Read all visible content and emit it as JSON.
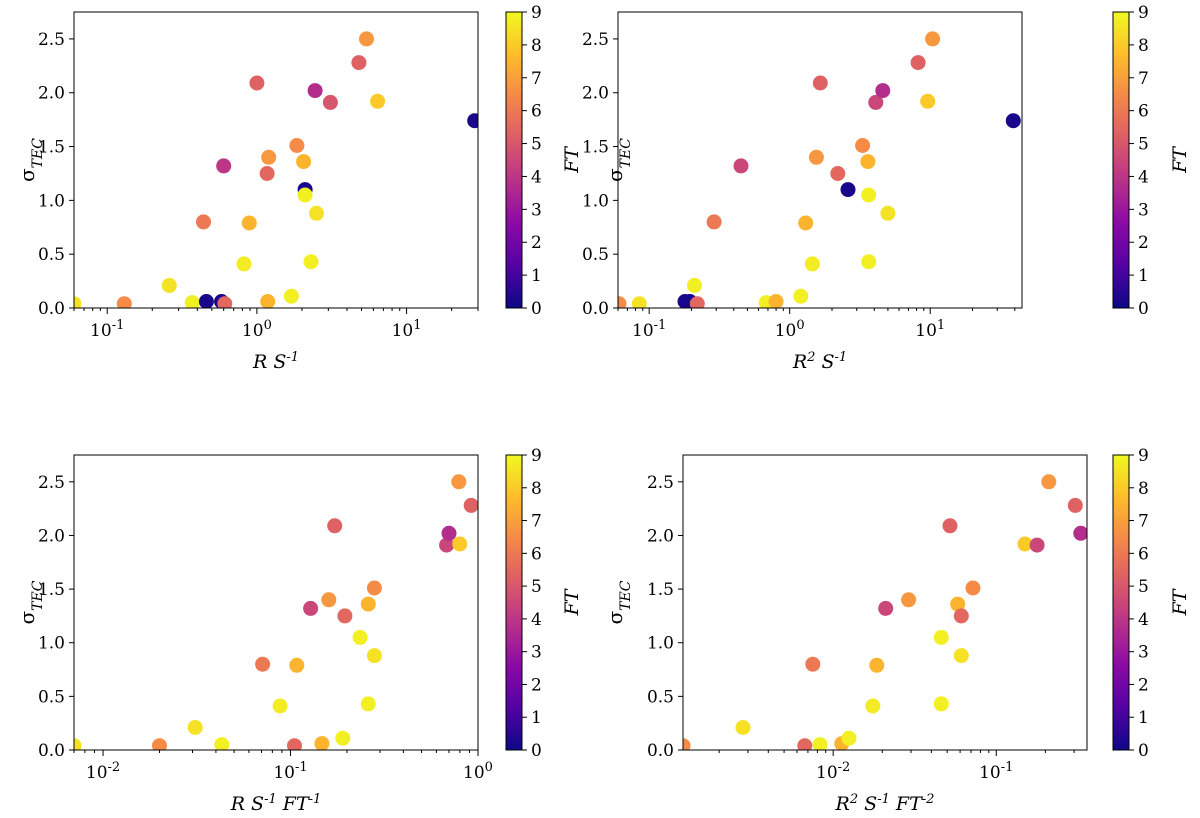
{
  "chart_data": [
    {
      "type": "scatter",
      "id": "p1",
      "x_scale": "log",
      "xlim": [
        0.06,
        30
      ],
      "ylim": [
        0.0,
        2.75
      ],
      "xlabel_tex": "R S^-1",
      "xlabel_parts": {
        "a": "R S",
        "b": "-1",
        "c": "",
        "d": ""
      },
      "ylabel_main": "σ",
      "ylabel_sub": "TEC",
      "x_ticks": [
        {
          "v": 0.1,
          "base": "10",
          "exp": "-1"
        },
        {
          "v": 1,
          "base": "10",
          "exp": "0"
        },
        {
          "v": 10,
          "base": "10",
          "exp": "1"
        }
      ],
      "y_ticks": [
        "0.0",
        "0.5",
        "1.0",
        "1.5",
        "2.0",
        "2.5"
      ],
      "colorbar": {
        "label": "FT",
        "min": 0,
        "max": 9,
        "ticks": [
          "0",
          "1",
          "2",
          "3",
          "4",
          "5",
          "6",
          "7",
          "8",
          "9"
        ]
      },
      "points": [
        {
          "x": 0.06,
          "y": 0.04,
          "ft": 8.5
        },
        {
          "x": 0.13,
          "y": 0.04,
          "ft": 6.5
        },
        {
          "x": 0.26,
          "y": 0.21,
          "ft": 8.5
        },
        {
          "x": 0.37,
          "y": 0.05,
          "ft": 8.8
        },
        {
          "x": 0.44,
          "y": 0.8,
          "ft": 6.0
        },
        {
          "x": 0.46,
          "y": 0.06,
          "ft": 0.2
        },
        {
          "x": 0.58,
          "y": 0.06,
          "ft": 0.2
        },
        {
          "x": 0.6,
          "y": 1.32,
          "ft": 4.0
        },
        {
          "x": 0.61,
          "y": 0.04,
          "ft": 5.5
        },
        {
          "x": 0.82,
          "y": 0.41,
          "ft": 8.7
        },
        {
          "x": 0.89,
          "y": 0.79,
          "ft": 7.5
        },
        {
          "x": 1.0,
          "y": 2.09,
          "ft": 5.3
        },
        {
          "x": 1.17,
          "y": 1.25,
          "ft": 5.5
        },
        {
          "x": 1.2,
          "y": 1.4,
          "ft": 6.8
        },
        {
          "x": 1.18,
          "y": 0.06,
          "ft": 7.5
        },
        {
          "x": 1.7,
          "y": 0.11,
          "ft": 8.8
        },
        {
          "x": 1.85,
          "y": 1.51,
          "ft": 6.5
        },
        {
          "x": 2.05,
          "y": 1.36,
          "ft": 7.5
        },
        {
          "x": 2.1,
          "y": 1.1,
          "ft": 0.2
        },
        {
          "x": 2.1,
          "y": 1.05,
          "ft": 8.8
        },
        {
          "x": 2.3,
          "y": 0.43,
          "ft": 8.8
        },
        {
          "x": 2.5,
          "y": 0.88,
          "ft": 8.5
        },
        {
          "x": 2.45,
          "y": 2.02,
          "ft": 3.7
        },
        {
          "x": 3.1,
          "y": 1.91,
          "ft": 5.0
        },
        {
          "x": 4.8,
          "y": 2.28,
          "ft": 5.3
        },
        {
          "x": 5.4,
          "y": 2.5,
          "ft": 6.8
        },
        {
          "x": 6.4,
          "y": 1.92,
          "ft": 8.0
        },
        {
          "x": 28.5,
          "y": 1.74,
          "ft": 0.2
        }
      ]
    },
    {
      "type": "scatter",
      "id": "p2",
      "x_scale": "log",
      "xlim": [
        0.06,
        45
      ],
      "ylim": [
        0.0,
        2.75
      ],
      "xlabel_tex": "R^2 S^-1",
      "xlabel_parts": {
        "a": "R",
        "b": "2",
        "c": " S",
        "d": "-1"
      },
      "ylabel_main": "σ",
      "ylabel_sub": "TEC",
      "x_ticks": [
        {
          "v": 0.1,
          "base": "10",
          "exp": "-1"
        },
        {
          "v": 1,
          "base": "10",
          "exp": "0"
        },
        {
          "v": 10,
          "base": "10",
          "exp": "1"
        }
      ],
      "y_ticks": [
        "0.0",
        "0.5",
        "1.0",
        "1.5",
        "2.0",
        "2.5"
      ],
      "colorbar": {
        "label": "FT",
        "min": 0,
        "max": 9,
        "ticks": [
          "0",
          "1",
          "2",
          "3",
          "4",
          "5",
          "6",
          "7",
          "8",
          "9"
        ]
      },
      "points": [
        {
          "x": 0.061,
          "y": 0.04,
          "ft": 6.5
        },
        {
          "x": 0.085,
          "y": 0.04,
          "ft": 8.5
        },
        {
          "x": 0.18,
          "y": 0.06,
          "ft": 0.2
        },
        {
          "x": 0.195,
          "y": 0.06,
          "ft": 0.2
        },
        {
          "x": 0.21,
          "y": 0.21,
          "ft": 8.8
        },
        {
          "x": 0.22,
          "y": 0.04,
          "ft": 5.5
        },
        {
          "x": 0.29,
          "y": 0.8,
          "ft": 6.0
        },
        {
          "x": 0.45,
          "y": 1.32,
          "ft": 4.5
        },
        {
          "x": 0.68,
          "y": 0.05,
          "ft": 8.8
        },
        {
          "x": 0.8,
          "y": 0.06,
          "ft": 7.5
        },
        {
          "x": 1.2,
          "y": 0.11,
          "ft": 8.8
        },
        {
          "x": 1.3,
          "y": 0.79,
          "ft": 7.5
        },
        {
          "x": 1.45,
          "y": 0.41,
          "ft": 8.7
        },
        {
          "x": 1.55,
          "y": 1.4,
          "ft": 6.8
        },
        {
          "x": 1.65,
          "y": 2.09,
          "ft": 5.3
        },
        {
          "x": 2.2,
          "y": 1.25,
          "ft": 5.5
        },
        {
          "x": 2.6,
          "y": 1.1,
          "ft": 0.2
        },
        {
          "x": 3.3,
          "y": 1.51,
          "ft": 6.5
        },
        {
          "x": 3.6,
          "y": 1.36,
          "ft": 7.5
        },
        {
          "x": 3.65,
          "y": 1.05,
          "ft": 8.8
        },
        {
          "x": 3.65,
          "y": 0.43,
          "ft": 8.8
        },
        {
          "x": 4.1,
          "y": 1.91,
          "ft": 4.5
        },
        {
          "x": 4.6,
          "y": 2.02,
          "ft": 3.7
        },
        {
          "x": 5.0,
          "y": 0.88,
          "ft": 8.5
        },
        {
          "x": 8.2,
          "y": 2.28,
          "ft": 5.3
        },
        {
          "x": 9.6,
          "y": 1.92,
          "ft": 8.0
        },
        {
          "x": 10.4,
          "y": 2.5,
          "ft": 6.8
        },
        {
          "x": 39,
          "y": 1.74,
          "ft": 0.2
        }
      ]
    },
    {
      "type": "scatter",
      "id": "p3",
      "x_scale": "log",
      "xlim": [
        0.007,
        1.0
      ],
      "ylim": [
        0.0,
        2.75
      ],
      "xlabel_tex": "R S^-1 FT^-1",
      "xlabel_parts": {
        "a": "R S",
        "b": "-1",
        "c": " FT",
        "d": "-1"
      },
      "ylabel_main": "σ",
      "ylabel_sub": "TEC",
      "x_ticks": [
        {
          "v": 0.01,
          "base": "10",
          "exp": "-2"
        },
        {
          "v": 0.1,
          "base": "10",
          "exp": "-1"
        },
        {
          "v": 1,
          "base": "10",
          "exp": "0"
        }
      ],
      "y_ticks": [
        "0.0",
        "0.5",
        "1.0",
        "1.5",
        "2.0",
        "2.5"
      ],
      "colorbar": {
        "label": "FT",
        "min": 0,
        "max": 9,
        "ticks": [
          "0",
          "1",
          "2",
          "3",
          "4",
          "5",
          "6",
          "7",
          "8",
          "9"
        ]
      },
      "points": [
        {
          "x": 0.007,
          "y": 0.04,
          "ft": 8.5
        },
        {
          "x": 0.02,
          "y": 0.04,
          "ft": 6.5
        },
        {
          "x": 0.031,
          "y": 0.21,
          "ft": 8.5
        },
        {
          "x": 0.043,
          "y": 0.05,
          "ft": 8.8
        },
        {
          "x": 0.071,
          "y": 0.8,
          "ft": 6.0
        },
        {
          "x": 0.088,
          "y": 0.41,
          "ft": 8.7
        },
        {
          "x": 0.105,
          "y": 0.04,
          "ft": 5.5
        },
        {
          "x": 0.108,
          "y": 0.79,
          "ft": 7.5
        },
        {
          "x": 0.128,
          "y": 1.32,
          "ft": 4.5
        },
        {
          "x": 0.147,
          "y": 0.06,
          "ft": 7.5
        },
        {
          "x": 0.16,
          "y": 1.4,
          "ft": 6.8
        },
        {
          "x": 0.172,
          "y": 2.09,
          "ft": 5.3
        },
        {
          "x": 0.19,
          "y": 0.11,
          "ft": 8.8
        },
        {
          "x": 0.195,
          "y": 1.25,
          "ft": 5.5
        },
        {
          "x": 0.235,
          "y": 1.05,
          "ft": 8.8
        },
        {
          "x": 0.26,
          "y": 1.36,
          "ft": 7.5
        },
        {
          "x": 0.26,
          "y": 0.43,
          "ft": 8.8
        },
        {
          "x": 0.28,
          "y": 1.51,
          "ft": 6.5
        },
        {
          "x": 0.28,
          "y": 0.88,
          "ft": 8.5
        },
        {
          "x": 0.68,
          "y": 1.91,
          "ft": 4.5
        },
        {
          "x": 0.7,
          "y": 2.02,
          "ft": 3.7
        },
        {
          "x": 0.79,
          "y": 2.5,
          "ft": 6.8
        },
        {
          "x": 0.8,
          "y": 1.92,
          "ft": 8.0
        },
        {
          "x": 0.92,
          "y": 2.28,
          "ft": 5.3
        }
      ]
    },
    {
      "type": "scatter",
      "id": "p4",
      "x_scale": "log",
      "xlim": [
        0.0012,
        0.36
      ],
      "ylim": [
        0.0,
        2.75
      ],
      "xlabel_tex": "R^2 S^-1 FT^-2",
      "xlabel_parts": {
        "a": "R",
        "b": "2",
        "c": " S",
        "d": "-1",
        "e": " FT",
        "f": "-2"
      },
      "ylabel_main": "σ",
      "ylabel_sub": "TEC",
      "x_ticks": [
        {
          "v": 0.01,
          "base": "10",
          "exp": "-2"
        },
        {
          "v": 0.1,
          "base": "10",
          "exp": "-1"
        }
      ],
      "y_ticks": [
        "0.0",
        "0.5",
        "1.0",
        "1.5",
        "2.0",
        "2.5"
      ],
      "colorbar": {
        "label": "FT",
        "min": 0,
        "max": 9,
        "ticks": [
          "0",
          "1",
          "2",
          "3",
          "4",
          "5",
          "6",
          "7",
          "8",
          "9"
        ]
      },
      "points": [
        {
          "x": 0.0012,
          "y": 0.04,
          "ft": 6.5
        },
        {
          "x": 0.0028,
          "y": 0.21,
          "ft": 8.5
        },
        {
          "x": 0.0067,
          "y": 0.04,
          "ft": 5.5
        },
        {
          "x": 0.0075,
          "y": 0.8,
          "ft": 6.0
        },
        {
          "x": 0.0083,
          "y": 0.05,
          "ft": 8.8
        },
        {
          "x": 0.0113,
          "y": 0.06,
          "ft": 7.5
        },
        {
          "x": 0.0125,
          "y": 0.11,
          "ft": 8.8
        },
        {
          "x": 0.0175,
          "y": 0.41,
          "ft": 8.7
        },
        {
          "x": 0.0185,
          "y": 0.79,
          "ft": 7.5
        },
        {
          "x": 0.021,
          "y": 1.32,
          "ft": 4.5
        },
        {
          "x": 0.029,
          "y": 1.4,
          "ft": 6.8
        },
        {
          "x": 0.046,
          "y": 1.05,
          "ft": 8.8
        },
        {
          "x": 0.046,
          "y": 0.43,
          "ft": 8.8
        },
        {
          "x": 0.052,
          "y": 2.09,
          "ft": 5.3
        },
        {
          "x": 0.058,
          "y": 1.36,
          "ft": 7.5
        },
        {
          "x": 0.061,
          "y": 1.25,
          "ft": 5.5
        },
        {
          "x": 0.061,
          "y": 0.88,
          "ft": 8.5
        },
        {
          "x": 0.072,
          "y": 1.51,
          "ft": 6.5
        },
        {
          "x": 0.15,
          "y": 1.92,
          "ft": 8.0
        },
        {
          "x": 0.178,
          "y": 1.91,
          "ft": 4.5
        },
        {
          "x": 0.21,
          "y": 2.5,
          "ft": 6.8
        },
        {
          "x": 0.305,
          "y": 2.28,
          "ft": 5.3
        },
        {
          "x": 0.33,
          "y": 2.02,
          "ft": 3.7
        }
      ]
    }
  ],
  "colormap": [
    "#0d0887",
    "#5302a3",
    "#8b0aa5",
    "#b83289",
    "#db5c68",
    "#f48849",
    "#febd2a",
    "#f0f921"
  ]
}
